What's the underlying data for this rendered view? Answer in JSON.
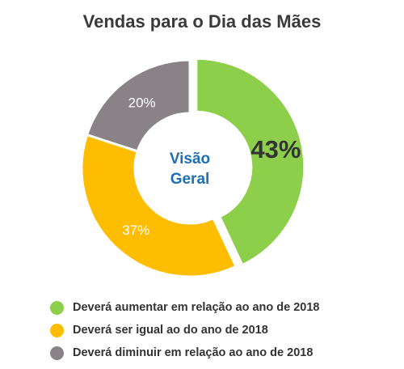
{
  "chart_data": {
    "type": "pie",
    "variant": "donut",
    "title": "Vendas para o Dia das Mães",
    "center_label": [
      "Visão",
      "Geral"
    ],
    "slices": [
      {
        "label": "Deverá aumentar em relação ao ano de 2018",
        "value": 43,
        "display": "43%",
        "color": "#8DCF4B",
        "exploded": true
      },
      {
        "label": "Deverá ser igual ao do ano de 2018",
        "value": 37,
        "display": "37%",
        "color": "#FFBD00",
        "exploded": false
      },
      {
        "label": "Deverá diminuir em relação ao ano de 2018",
        "value": 20,
        "display": "20%",
        "color": "#898388",
        "exploded": false
      }
    ],
    "legend_position": "bottom-left"
  },
  "colors": {
    "title": "#3a3a3a",
    "center_label": "#1F6FB5",
    "legend_text": "#333333"
  }
}
